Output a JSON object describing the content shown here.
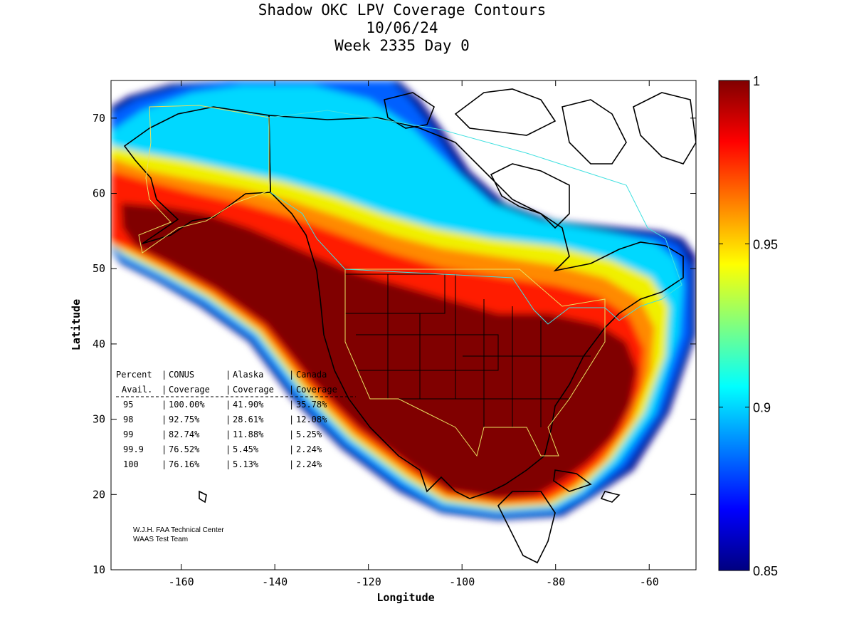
{
  "title": {
    "line1": "Shadow OKC LPV Coverage Contours",
    "line2": "10/06/24",
    "line3": "Week 2335 Day 0"
  },
  "axes": {
    "xlabel": "Longitude",
    "ylabel": "Latitude",
    "xlim": [
      -175,
      -50
    ],
    "ylim": [
      10,
      75
    ],
    "xticks": [
      {
        "value": -160,
        "label": "-160"
      },
      {
        "value": -140,
        "label": "-140"
      },
      {
        "value": -120,
        "label": "-120"
      },
      {
        "value": -100,
        "label": "-100"
      },
      {
        "value": -80,
        "label": "-80"
      },
      {
        "value": -60,
        "label": "-60"
      }
    ],
    "yticks": [
      {
        "value": 10,
        "label": "10"
      },
      {
        "value": 20,
        "label": "20"
      },
      {
        "value": 30,
        "label": "30"
      },
      {
        "value": 40,
        "label": "40"
      },
      {
        "value": 50,
        "label": "50"
      },
      {
        "value": 60,
        "label": "60"
      },
      {
        "value": 70,
        "label": "70"
      }
    ]
  },
  "colorbar": {
    "min": 0.85,
    "max": 1,
    "colormap": "jet",
    "ticks": [
      {
        "value": 1,
        "label": "1"
      },
      {
        "value": 0.95,
        "label": "0.95"
      },
      {
        "value": 0.9,
        "label": "0.9"
      },
      {
        "value": 0.85,
        "label": "0.85"
      }
    ]
  },
  "stats_table": {
    "header1": [
      "Percent",
      "CONUS",
      "Alaska",
      "Canada"
    ],
    "header2": [
      "Avail.",
      "Coverage",
      "Coverage",
      "Coverage"
    ],
    "rows": [
      [
        "95",
        "100.00%",
        "41.90%",
        "35.78%"
      ],
      [
        "98",
        "92.75%",
        "28.61%",
        "12.08%"
      ],
      [
        "99",
        "82.74%",
        "11.88%",
        "5.25%"
      ],
      [
        "99.9",
        "76.52%",
        "5.45%",
        "2.24%"
      ],
      [
        "100",
        "76.16%",
        "5.13%",
        "2.24%"
      ]
    ]
  },
  "credits": {
    "line1": "W.J.H. FAA Technical Center",
    "line2": "WAAS Test Team"
  },
  "colors": {
    "deep_red": "#800000",
    "red": "#ff1a00",
    "orange": "#ff8a00",
    "yellow": "#f5f200",
    "cyan": "#00e0ff",
    "blue": "#0070ff",
    "navy": "#000090",
    "coast": "#000000",
    "conus_boundary": "#f0e060",
    "canada_boundary": "#40e0e0"
  }
}
